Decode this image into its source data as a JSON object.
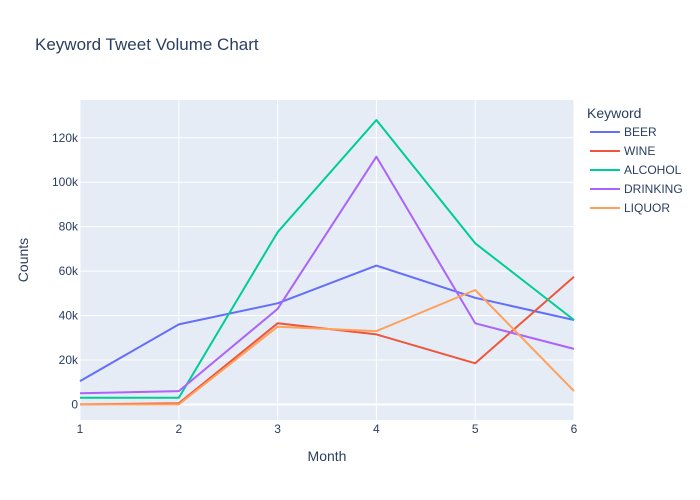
{
  "chart_data": {
    "type": "line",
    "title": "Keyword Tweet Volume Chart",
    "xlabel": "Month",
    "ylabel": "Counts",
    "x": [
      1,
      2,
      3,
      4,
      5,
      6
    ],
    "xlim": [
      1,
      6
    ],
    "ylim": [
      -7000,
      137000
    ],
    "x_ticks": [
      1,
      2,
      3,
      4,
      5,
      6
    ],
    "y_ticks": [
      0,
      20000,
      40000,
      60000,
      80000,
      100000,
      120000
    ],
    "y_tick_labels": [
      "0",
      "20k",
      "40k",
      "60k",
      "80k",
      "100k",
      "120k"
    ],
    "grid": true,
    "legend_title": "Keyword",
    "legend_position": "right",
    "series": [
      {
        "name": "BEER",
        "color": "#636efa",
        "values": [
          10500,
          36000,
          45500,
          62500,
          48000,
          38000
        ]
      },
      {
        "name": "WINE",
        "color": "#EF553B",
        "values": [
          0,
          500,
          36500,
          31500,
          18500,
          57500
        ]
      },
      {
        "name": "ALCOHOL",
        "color": "#00cc96",
        "values": [
          3000,
          3000,
          77500,
          128000,
          72500,
          38000
        ]
      },
      {
        "name": "DRINKING",
        "color": "#ab63fa",
        "values": [
          5000,
          6000,
          43000,
          111500,
          36500,
          25000
        ]
      },
      {
        "name": "LIQUOR",
        "color": "#FFA15A",
        "values": [
          0,
          0,
          35000,
          33000,
          51500,
          6000
        ]
      }
    ]
  }
}
